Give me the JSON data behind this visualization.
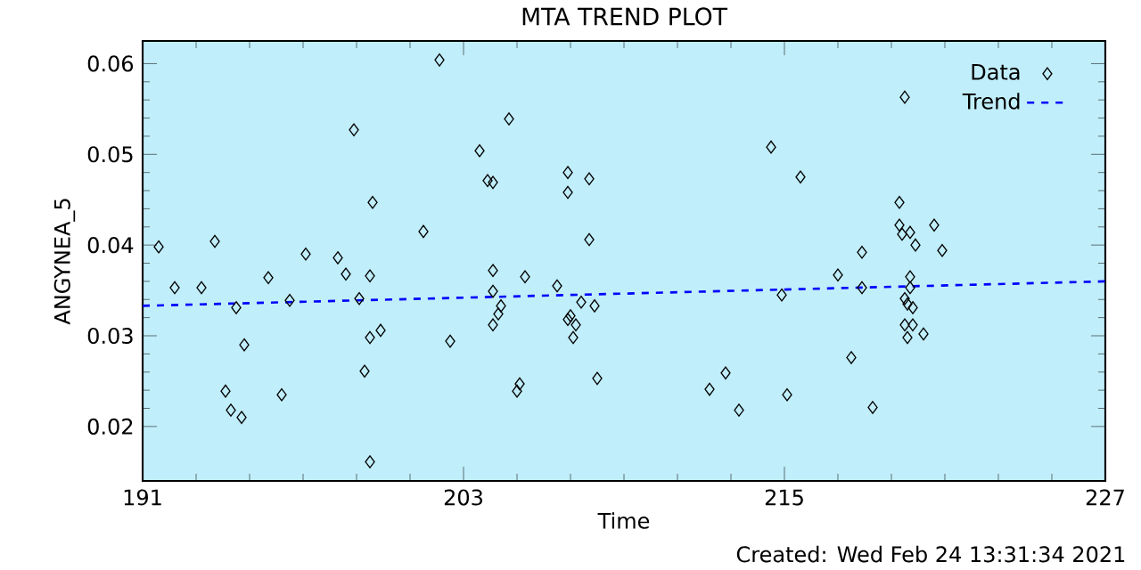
{
  "chart_data": {
    "type": "scatter",
    "title": "MTA TREND PLOT",
    "xlabel": "Time",
    "ylabel": "ANGYNEA_5",
    "annotations": [
      "Created: Wed Feb 24 13:31:34 2021"
    ],
    "xlim": [
      191,
      227
    ],
    "xticks": [
      191,
      203,
      215,
      227
    ],
    "ylim": [
      0.014,
      0.0625
    ],
    "yticks": [
      0.02,
      0.03,
      0.04,
      0.05,
      0.06
    ],
    "grid": false,
    "legend": "top right",
    "series": [
      {
        "name": "Data",
        "marker": "diamond",
        "color": "#000000",
        "x": [
          191.6,
          192.2,
          193.2,
          193.7,
          194.5,
          194.1,
          194.3,
          194.7,
          194.8,
          195.7,
          196.2,
          196.5,
          197.1,
          198.3,
          198.6,
          198.9,
          199.1,
          199.3,
          199.5,
          199.5,
          199.6,
          199.5,
          199.9,
          201.5,
          202.1,
          202.5,
          203.6,
          203.9,
          204.1,
          204.1,
          204.1,
          204.3,
          204.1,
          204.4,
          204.7,
          205.3,
          205.0,
          205.1,
          206.5,
          206.9,
          206.9,
          206.9,
          207.1,
          207.2,
          207.0,
          207.4,
          207.7,
          207.7,
          207.9,
          208.0,
          212.2,
          212.8,
          213.3,
          214.5,
          214.9,
          215.6,
          215.1,
          217.0,
          217.9,
          217.9,
          217.5,
          218.3,
          219.3,
          219.3,
          219.4,
          219.7,
          219.9,
          220.6,
          220.9,
          219.7,
          219.7,
          219.5,
          219.6,
          219.8,
          219.5,
          219.8,
          219.6,
          220.2,
          219.5
        ],
        "values": [
          0.0398,
          0.0353,
          0.0353,
          0.0404,
          0.0331,
          0.0239,
          0.0218,
          0.021,
          0.029,
          0.0364,
          0.0235,
          0.0339,
          0.039,
          0.0386,
          0.0368,
          0.0527,
          0.0341,
          0.0261,
          0.0161,
          0.0366,
          0.0447,
          0.0298,
          0.0306,
          0.0415,
          0.0604,
          0.0294,
          0.0504,
          0.0471,
          0.0469,
          0.0372,
          0.0349,
          0.0324,
          0.0312,
          0.0333,
          0.0539,
          0.0365,
          0.0239,
          0.0247,
          0.0355,
          0.0458,
          0.048,
          0.0318,
          0.0298,
          0.0312,
          0.0322,
          0.0337,
          0.0473,
          0.0406,
          0.0333,
          0.0253,
          0.0241,
          0.0259,
          0.0218,
          0.0508,
          0.0345,
          0.0475,
          0.0235,
          0.0367,
          0.0392,
          0.0353,
          0.0276,
          0.0221,
          0.0447,
          0.0422,
          0.0412,
          0.0414,
          0.04,
          0.0422,
          0.0394,
          0.0365,
          0.0353,
          0.0341,
          0.0335,
          0.0331,
          0.0312,
          0.0312,
          0.0298,
          0.0302,
          0.0563
        ]
      },
      {
        "name": "Trend",
        "type": "line",
        "marker": "none",
        "line_style": "dashed",
        "color": "#0000ff",
        "x": [
          191,
          227
        ],
        "values": [
          0.0333,
          0.036
        ]
      }
    ]
  }
}
